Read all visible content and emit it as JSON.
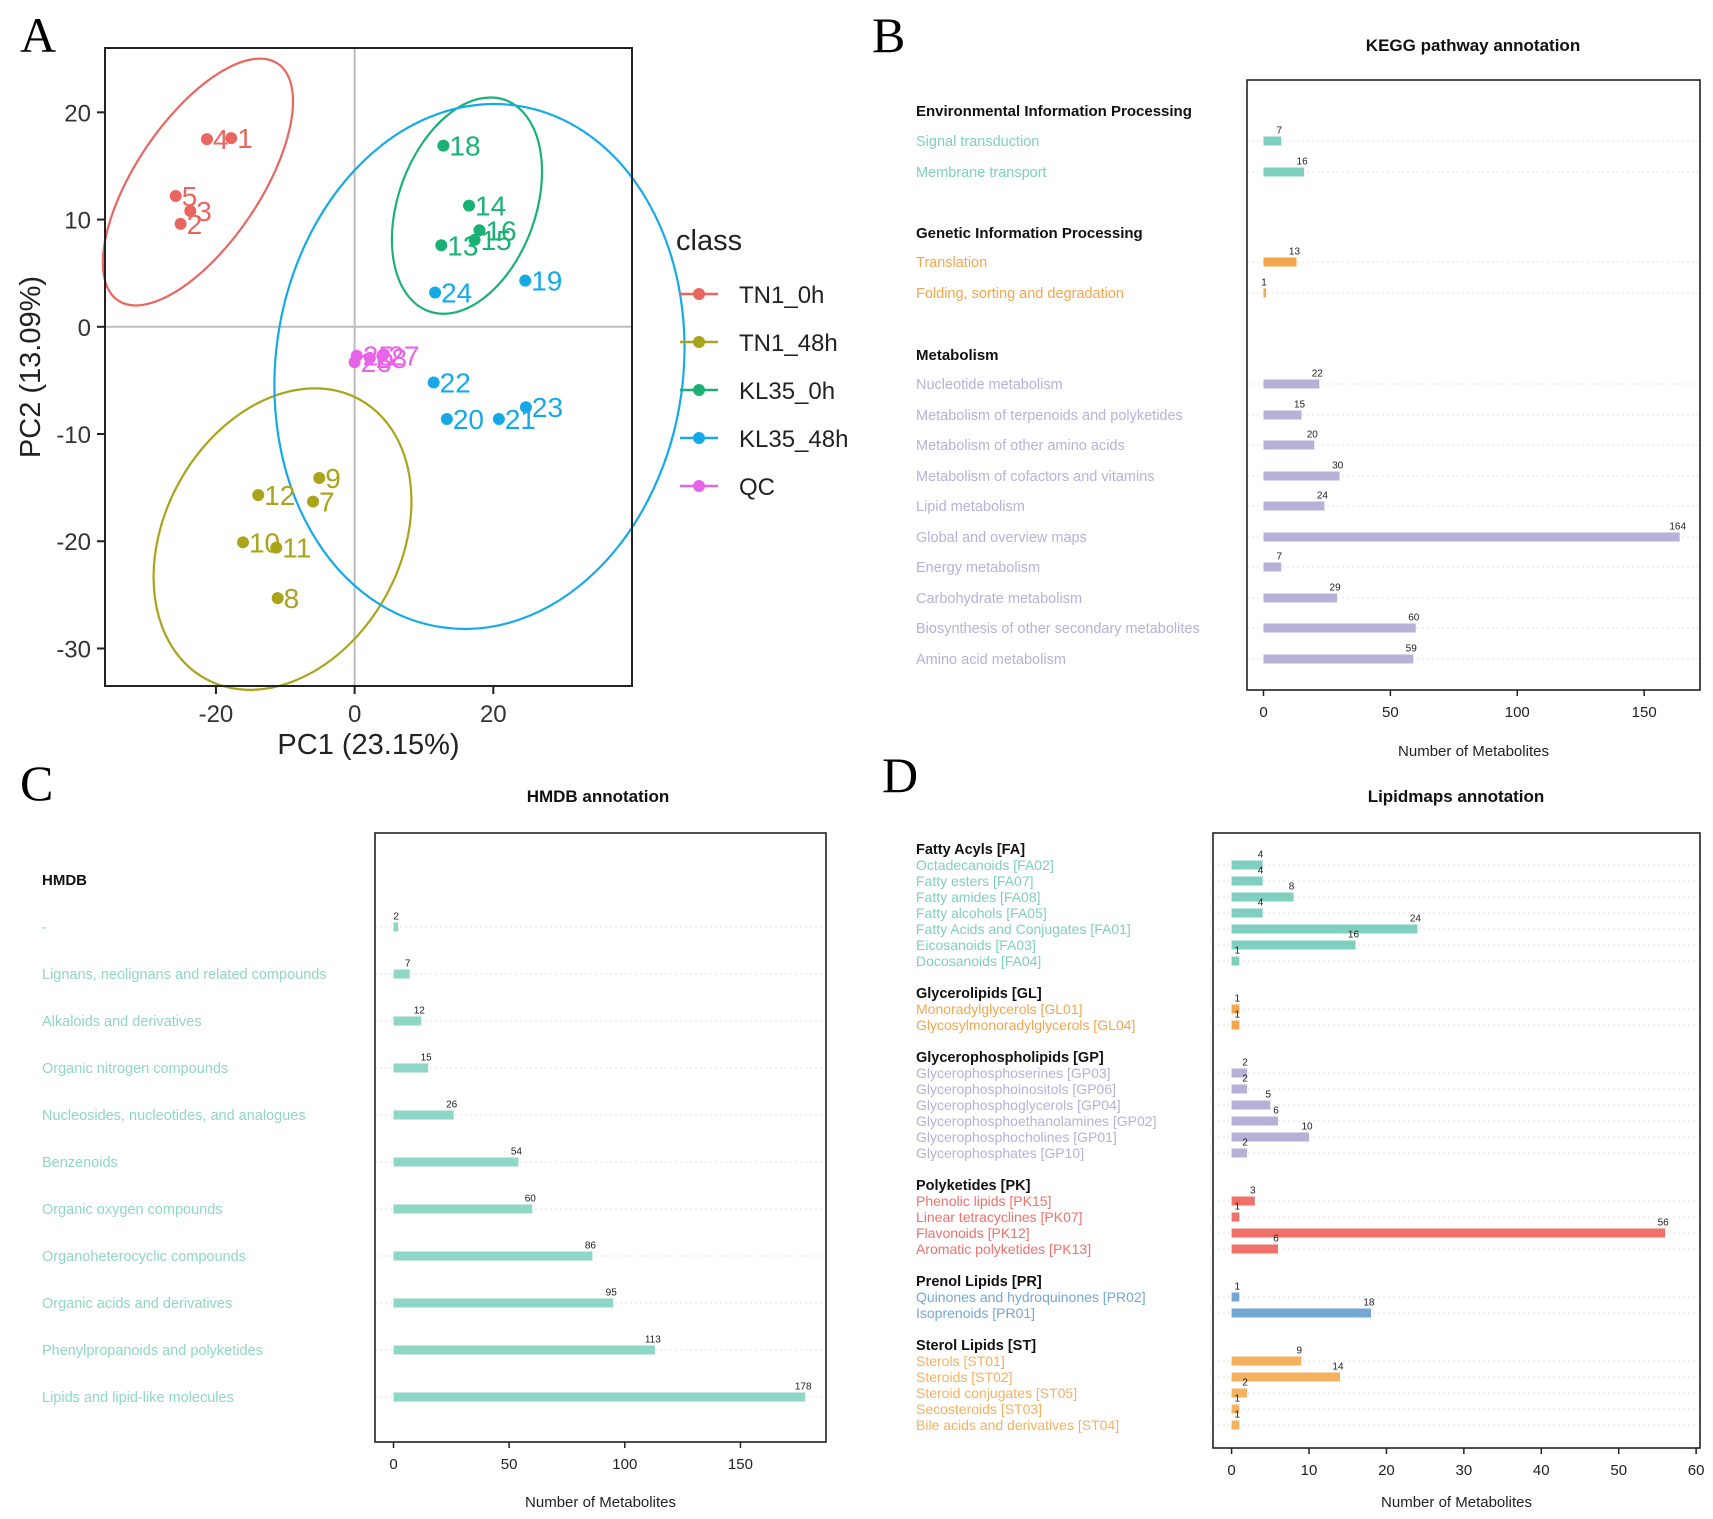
{
  "panel_labels": [
    "A",
    "B",
    "C",
    "D"
  ],
  "chart_data": [
    {
      "type": "scatter",
      "panel": "A",
      "title": "",
      "xlabel": "PC1 (23.15%)",
      "ylabel": "PC2 (13.09%)",
      "xlim": [
        -36,
        40
      ],
      "ylim": [
        -33.5,
        26
      ],
      "xticks": [
        -20,
        0,
        20
      ],
      "yticks": [
        20,
        10,
        0,
        -10,
        -20,
        -30
      ],
      "legend": {
        "title": "class",
        "position": "right"
      },
      "series": [
        {
          "name": "TN1_0h",
          "color": "#E8665F",
          "points": [
            {
              "label": "4",
              "x": -21.3,
              "y": 17.5
            },
            {
              "label": "1",
              "x": -17.8,
              "y": 17.6
            },
            {
              "label": "5",
              "x": -25.8,
              "y": 12.2
            },
            {
              "label": "3",
              "x": -23.7,
              "y": 10.8
            },
            {
              "label": "2",
              "x": -25.1,
              "y": 9.6
            }
          ],
          "ellipse": {
            "cx": -22.6,
            "cy": 13.5,
            "rx": 20.6,
            "ry": 5.8,
            "angle": 56
          }
        },
        {
          "name": "TN1_48h",
          "color": "#A9A41A",
          "points": [
            {
              "label": "9",
              "x": -5.1,
              "y": -14.1
            },
            {
              "label": "12",
              "x": -13.9,
              "y": -15.7
            },
            {
              "label": "7",
              "x": -6.0,
              "y": -16.3
            },
            {
              "label": "10",
              "x": -16.1,
              "y": -20.1
            },
            {
              "label": "11",
              "x": -11.3,
              "y": -20.6
            },
            {
              "label": "8",
              "x": -11.1,
              "y": -25.3
            }
          ],
          "ellipse": {
            "cx": -10.4,
            "cy": -19.8,
            "rx": 23.0,
            "ry": 11.0,
            "angle": 61
          }
        },
        {
          "name": "KL35_0h",
          "color": "#1BB175",
          "points": [
            {
              "label": "18",
              "x": 12.8,
              "y": 16.9
            },
            {
              "label": "14",
              "x": 16.5,
              "y": 11.3
            },
            {
              "label": "16",
              "x": 18.0,
              "y": 9.0
            },
            {
              "label": "13",
              "x": 12.5,
              "y": 7.6
            },
            {
              "label": "15",
              "x": 17.3,
              "y": 8.1
            }
          ],
          "ellipse": {
            "cx": 16.2,
            "cy": 11.3,
            "rx": 16.2,
            "ry": 6.4,
            "angle": 70
          }
        },
        {
          "name": "KL35_48h",
          "color": "#16A9E8",
          "points": [
            {
              "label": "19",
              "x": 24.6,
              "y": 4.3
            },
            {
              "label": "24",
              "x": 11.6,
              "y": 3.2
            },
            {
              "label": "22",
              "x": 11.4,
              "y": -5.2
            },
            {
              "label": "23",
              "x": 24.7,
              "y": -7.5
            },
            {
              "label": "20",
              "x": 13.3,
              "y": -8.6
            },
            {
              "label": "21",
              "x": 20.8,
              "y": -8.6
            }
          ],
          "ellipse": {
            "cx": 18.0,
            "cy": -3.7,
            "rx": 38.0,
            "ry": 19.0,
            "angle": 82
          }
        },
        {
          "name": "QC",
          "color": "#E764E8",
          "points": [
            {
              "label": "25",
              "x": 0.3,
              "y": -2.7
            },
            {
              "label": "27",
              "x": 4.0,
              "y": -2.7
            },
            {
              "label": "26",
              "x": 0.0,
              "y": -3.3
            },
            {
              "label": "28",
              "x": 2.2,
              "y": -2.9
            }
          ]
        }
      ]
    },
    {
      "type": "bar",
      "panel": "B",
      "orientation": "horizontal",
      "title": "KEGG pathway annotation",
      "xlabel": "Number of Metabolites",
      "xlim": [
        -6.5,
        172
      ],
      "xticks": [
        0,
        50,
        100,
        150
      ],
      "groups": [
        {
          "name": "Environmental Information Processing",
          "color": "#7FCFBE",
          "items": [
            {
              "label": "Signal transduction",
              "value": 7
            },
            {
              "label": "Membrane transport",
              "value": 16
            }
          ]
        },
        {
          "name": "Genetic Information Processing",
          "color": "#F5A64A",
          "items": [
            {
              "label": "Translation",
              "value": 13
            },
            {
              "label": "Folding, sorting and degradation",
              "value": 1
            }
          ]
        },
        {
          "name": "Metabolism",
          "color": "#B7B1D8",
          "items": [
            {
              "label": "Nucleotide metabolism",
              "value": 22
            },
            {
              "label": "Metabolism of terpenoids and polyketides",
              "value": 15
            },
            {
              "label": "Metabolism of other amino acids",
              "value": 20
            },
            {
              "label": "Metabolism of cofactors and vitamins",
              "value": 30
            },
            {
              "label": "Lipid metabolism",
              "value": 24
            },
            {
              "label": "Global and overview maps",
              "value": 164
            },
            {
              "label": "Energy metabolism",
              "value": 7
            },
            {
              "label": "Carbohydrate metabolism",
              "value": 29
            },
            {
              "label": "Biosynthesis of other secondary metabolites",
              "value": 60
            },
            {
              "label": "Amino acid metabolism",
              "value": 59
            }
          ]
        }
      ]
    },
    {
      "type": "bar",
      "panel": "C",
      "orientation": "horizontal",
      "title": "HMDB annotation",
      "xlabel": "Number of Metabolites",
      "xlim": [
        -8,
        187
      ],
      "xticks": [
        0,
        50,
        100,
        150
      ],
      "groups": [
        {
          "name": "HMDB",
          "color": "#8ED6C5",
          "items": [
            {
              "label": "-",
              "value": 2
            },
            {
              "label": "Lignans, neolignans and related compounds",
              "value": 7
            },
            {
              "label": "Alkaloids and derivatives",
              "value": 12
            },
            {
              "label": "Organic nitrogen compounds",
              "value": 15
            },
            {
              "label": "Nucleosides, nucleotides, and analogues",
              "value": 26
            },
            {
              "label": "Benzenoids",
              "value": 54
            },
            {
              "label": "Organic oxygen compounds",
              "value": 60
            },
            {
              "label": "Organoheterocyclic compounds",
              "value": 86
            },
            {
              "label": "Organic acids and derivatives",
              "value": 95
            },
            {
              "label": "Phenylpropanoids and polyketides",
              "value": 113
            },
            {
              "label": "Lipids and lipid-like molecules",
              "value": 178
            }
          ]
        }
      ]
    },
    {
      "type": "bar",
      "panel": "D",
      "orientation": "horizontal",
      "title": "Lipidmaps annotation",
      "xlabel": "Number of Metabolites",
      "xlim": [
        -2.4,
        60.5
      ],
      "xticks": [
        0,
        10,
        20,
        30,
        40,
        50,
        60
      ],
      "groups": [
        {
          "name": "Fatty Acyls [FA]",
          "color": "#7FCFBE",
          "items": [
            {
              "label": "Octadecanoids [FA02]",
              "value": 4
            },
            {
              "label": "Fatty esters [FA07]",
              "value": 4
            },
            {
              "label": "Fatty amides [FA08]",
              "value": 8
            },
            {
              "label": "Fatty alcohols [FA05]",
              "value": 4
            },
            {
              "label": "Fatty Acids and Conjugates [FA01]",
              "value": 24
            },
            {
              "label": "Eicosanoids [FA03]",
              "value": 16
            },
            {
              "label": "Docosanoids [FA04]",
              "value": 1
            }
          ]
        },
        {
          "name": "Glycerolipids [GL]",
          "color": "#F5A64A",
          "items": [
            {
              "label": "Monoradylglycerols [GL01]",
              "value": 1
            },
            {
              "label": "Glycosylmonoradylglycerols [GL04]",
              "value": 1
            }
          ]
        },
        {
          "name": "Glycerophospholipids [GP]",
          "color": "#B7B1D8",
          "items": [
            {
              "label": "Glycerophosphoserines [GP03]",
              "value": 2
            },
            {
              "label": "Glycerophosphoinositols [GP06]",
              "value": 2
            },
            {
              "label": "Glycerophosphoglycerols [GP04]",
              "value": 5
            },
            {
              "label": "Glycerophosphoethanolamines [GP02]",
              "value": 6
            },
            {
              "label": "Glycerophosphocholines [GP01]",
              "value": 10
            },
            {
              "label": "Glycerophosphates [GP10]",
              "value": 2
            }
          ]
        },
        {
          "name": "Polyketides [PK]",
          "color": "#F0706A",
          "items": [
            {
              "label": "Phenolic lipids [PK15]",
              "value": 3
            },
            {
              "label": "Linear tetracyclines [PK07]",
              "value": 1
            },
            {
              "label": "Flavonoids [PK12]",
              "value": 56
            },
            {
              "label": "Aromatic polyketides [PK13]",
              "value": 6
            }
          ]
        },
        {
          "name": "Prenol Lipids [PR]",
          "color": "#73A8D4",
          "items": [
            {
              "label": "Quinones and hydroquinones [PR02]",
              "value": 1
            },
            {
              "label": "Isoprenoids [PR01]",
              "value": 18
            }
          ]
        },
        {
          "name": "Sterol Lipids [ST]",
          "color": "#F5B060",
          "items": [
            {
              "label": "Sterols [ST01]",
              "value": 9
            },
            {
              "label": "Steroids [ST02]",
              "value": 14
            },
            {
              "label": "Steroid conjugates [ST05]",
              "value": 2
            },
            {
              "label": "Secosteroids [ST03]",
              "value": 1
            },
            {
              "label": "Bile acids and derivatives [ST04]",
              "value": 1
            }
          ]
        }
      ]
    }
  ]
}
